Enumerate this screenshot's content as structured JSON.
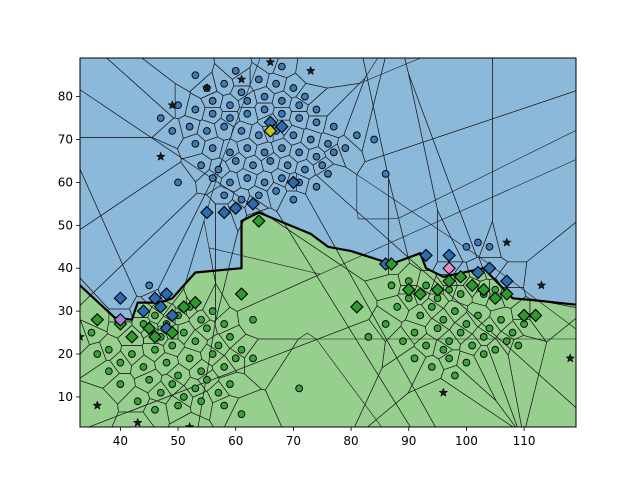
{
  "chart_data": {
    "type": "scatter",
    "title": "",
    "xlabel": "",
    "ylabel": "",
    "xlim": [
      33,
      119
    ],
    "ylim": [
      3,
      89
    ],
    "xticks": [
      40,
      50,
      60,
      70,
      80,
      90,
      100,
      110
    ],
    "yticks": [
      10,
      20,
      30,
      40,
      50,
      60,
      70,
      80
    ],
    "grid": false,
    "legend": "none",
    "regions": [
      {
        "name": "upper",
        "color": "#8cb8da"
      },
      {
        "name": "lower",
        "color": "#96cf8e"
      }
    ],
    "decision_boundary": [
      [
        33,
        36
      ],
      [
        39,
        28.5
      ],
      [
        42,
        28
      ],
      [
        43,
        32
      ],
      [
        47,
        32
      ],
      [
        49,
        33
      ],
      [
        53,
        39
      ],
      [
        61,
        40
      ],
      [
        61,
        51
      ],
      [
        64,
        53
      ],
      [
        73,
        48
      ],
      [
        76,
        45
      ],
      [
        80,
        44
      ],
      [
        87,
        41
      ],
      [
        92,
        43.5
      ],
      [
        93,
        40
      ],
      [
        96,
        38
      ],
      [
        103,
        40
      ],
      [
        108,
        33
      ],
      [
        112,
        32.5
      ],
      [
        119,
        31.5
      ]
    ],
    "series": [
      {
        "marker": "circle",
        "color": "#3f7ab3",
        "points": [
          [
            55,
            82
          ],
          [
            58,
            83
          ],
          [
            61,
            81
          ],
          [
            64,
            84
          ],
          [
            67,
            83
          ],
          [
            70,
            82
          ],
          [
            72,
            80
          ],
          [
            56,
            79
          ],
          [
            59,
            78
          ],
          [
            62,
            79
          ],
          [
            65,
            80
          ],
          [
            68,
            79
          ],
          [
            71,
            78
          ],
          [
            74,
            77
          ],
          [
            53,
            77
          ],
          [
            56,
            76
          ],
          [
            59,
            75
          ],
          [
            62,
            76
          ],
          [
            65,
            77
          ],
          [
            68,
            76
          ],
          [
            71,
            75
          ],
          [
            74,
            74
          ],
          [
            77,
            73
          ],
          [
            52,
            73
          ],
          [
            55,
            72
          ],
          [
            58,
            73
          ],
          [
            61,
            72
          ],
          [
            64,
            71
          ],
          [
            67,
            72
          ],
          [
            70,
            71
          ],
          [
            73,
            70
          ],
          [
            76,
            69
          ],
          [
            79,
            68
          ],
          [
            53,
            69
          ],
          [
            56,
            68
          ],
          [
            59,
            67
          ],
          [
            62,
            68
          ],
          [
            65,
            67
          ],
          [
            68,
            68
          ],
          [
            71,
            67
          ],
          [
            74,
            66
          ],
          [
            77,
            67
          ],
          [
            54,
            64
          ],
          [
            57,
            63
          ],
          [
            60,
            65
          ],
          [
            63,
            64
          ],
          [
            66,
            65
          ],
          [
            69,
            64
          ],
          [
            72,
            63
          ],
          [
            75,
            64
          ],
          [
            56,
            61
          ],
          [
            59,
            60
          ],
          [
            62,
            61
          ],
          [
            65,
            60
          ],
          [
            68,
            61
          ],
          [
            71,
            60
          ],
          [
            74,
            59
          ],
          [
            58,
            57
          ],
          [
            61,
            56
          ],
          [
            64,
            57
          ],
          [
            67,
            58
          ],
          [
            70,
            56
          ],
          [
            49,
            72
          ],
          [
            47,
            75
          ],
          [
            50,
            78
          ],
          [
            53,
            85
          ],
          [
            60,
            86
          ],
          [
            68,
            87
          ],
          [
            81,
            71
          ],
          [
            84,
            70
          ],
          [
            86,
            62
          ],
          [
            76,
            62
          ],
          [
            50,
            60
          ],
          [
            45,
            36
          ],
          [
            100,
            45
          ],
          [
            102,
            46
          ],
          [
            104,
            45
          ]
        ]
      },
      {
        "marker": "circle",
        "color": "#3ba33b",
        "points": [
          [
            35,
            25
          ],
          [
            38,
            21
          ],
          [
            40,
            18
          ],
          [
            42,
            20
          ],
          [
            44,
            17
          ],
          [
            46,
            21
          ],
          [
            48,
            18
          ],
          [
            50,
            15
          ],
          [
            52,
            19
          ],
          [
            54,
            16
          ],
          [
            56,
            20
          ],
          [
            58,
            17
          ],
          [
            60,
            19
          ],
          [
            47,
            24
          ],
          [
            49,
            22
          ],
          [
            51,
            25
          ],
          [
            53,
            23
          ],
          [
            55,
            26
          ],
          [
            57,
            22
          ],
          [
            59,
            24
          ],
          [
            61,
            21
          ],
          [
            45,
            14
          ],
          [
            47,
            11
          ],
          [
            49,
            13
          ],
          [
            51,
            10
          ],
          [
            53,
            12
          ],
          [
            55,
            14
          ],
          [
            57,
            11
          ],
          [
            59,
            13
          ],
          [
            40,
            13
          ],
          [
            38,
            16
          ],
          [
            36,
            20
          ],
          [
            42,
            24
          ],
          [
            44,
            27
          ],
          [
            46,
            29
          ],
          [
            48,
            27
          ],
          [
            50,
            29
          ],
          [
            52,
            31
          ],
          [
            54,
            28
          ],
          [
            56,
            30
          ],
          [
            58,
            27
          ],
          [
            43,
            9
          ],
          [
            46,
            7
          ],
          [
            50,
            8
          ],
          [
            54,
            9
          ],
          [
            58,
            8
          ],
          [
            61,
            6
          ],
          [
            63,
            19
          ],
          [
            63,
            28
          ],
          [
            71,
            12
          ],
          [
            83,
            24
          ],
          [
            86,
            27
          ],
          [
            88,
            31
          ],
          [
            90,
            33
          ],
          [
            92,
            29
          ],
          [
            94,
            31
          ],
          [
            96,
            28
          ],
          [
            98,
            30
          ],
          [
            100,
            27
          ],
          [
            102,
            29
          ],
          [
            104,
            26
          ],
          [
            106,
            28
          ],
          [
            108,
            25
          ],
          [
            110,
            27
          ],
          [
            89,
            23
          ],
          [
            91,
            25
          ],
          [
            93,
            22
          ],
          [
            95,
            26
          ],
          [
            97,
            23
          ],
          [
            99,
            25
          ],
          [
            101,
            22
          ],
          [
            103,
            24
          ],
          [
            105,
            21
          ],
          [
            107,
            23
          ],
          [
            109,
            22
          ],
          [
            91,
            19
          ],
          [
            94,
            17
          ],
          [
            97,
            19
          ],
          [
            100,
            18
          ],
          [
            103,
            20
          ],
          [
            95,
            33
          ],
          [
            97,
            35
          ],
          [
            99,
            34
          ],
          [
            101,
            36
          ],
          [
            103,
            34
          ],
          [
            105,
            35
          ],
          [
            87,
            36
          ],
          [
            90,
            37
          ],
          [
            93,
            36
          ],
          [
            96,
            21
          ],
          [
            98,
            15
          ]
        ]
      },
      {
        "marker": "diamond",
        "color": "#2b6cb0",
        "points": [
          [
            40,
            33
          ],
          [
            44,
            30
          ],
          [
            46,
            33
          ],
          [
            47,
            31
          ],
          [
            48,
            34
          ],
          [
            48,
            26
          ],
          [
            49,
            29
          ],
          [
            55,
            53
          ],
          [
            58,
            53
          ],
          [
            60,
            54
          ],
          [
            63,
            55
          ],
          [
            66,
            74
          ],
          [
            68,
            73
          ],
          [
            70,
            60
          ],
          [
            86,
            41
          ],
          [
            93,
            43
          ],
          [
            97,
            43
          ],
          [
            102,
            39
          ],
          [
            104,
            40
          ],
          [
            107,
            37
          ]
        ]
      },
      {
        "marker": "diamond",
        "color": "#2e9a2e",
        "points": [
          [
            36,
            28
          ],
          [
            40,
            27
          ],
          [
            42,
            24
          ],
          [
            45,
            26
          ],
          [
            46,
            24
          ],
          [
            49,
            25
          ],
          [
            51,
            31
          ],
          [
            53,
            32
          ],
          [
            61,
            34
          ],
          [
            64,
            51
          ],
          [
            81,
            31
          ],
          [
            87,
            41
          ],
          [
            90,
            35
          ],
          [
            92,
            34
          ],
          [
            95,
            35
          ],
          [
            97,
            37
          ],
          [
            99,
            38
          ],
          [
            101,
            36
          ],
          [
            103,
            35
          ],
          [
            105,
            33
          ],
          [
            107,
            34
          ],
          [
            110,
            29
          ],
          [
            112,
            29
          ]
        ]
      },
      {
        "marker": "diamond",
        "color": "#c9c12a",
        "points": [
          [
            66,
            72
          ]
        ]
      },
      {
        "marker": "diamond",
        "color": "#a77ed4",
        "points": [
          [
            40,
            28
          ]
        ]
      },
      {
        "marker": "diamond",
        "color": "#e78ac3",
        "points": [
          [
            97,
            40
          ]
        ]
      },
      {
        "marker": "star",
        "color": "#1a1a1a",
        "points": [
          [
            33,
            24
          ],
          [
            36,
            8
          ],
          [
            43,
            4
          ],
          [
            49,
            78
          ],
          [
            55,
            82
          ],
          [
            61,
            84
          ],
          [
            66,
            88
          ],
          [
            73,
            86
          ],
          [
            47,
            66
          ],
          [
            52,
            3
          ],
          [
            96,
            11
          ],
          [
            107,
            46
          ],
          [
            113,
            36
          ],
          [
            118,
            19
          ]
        ]
      }
    ]
  }
}
